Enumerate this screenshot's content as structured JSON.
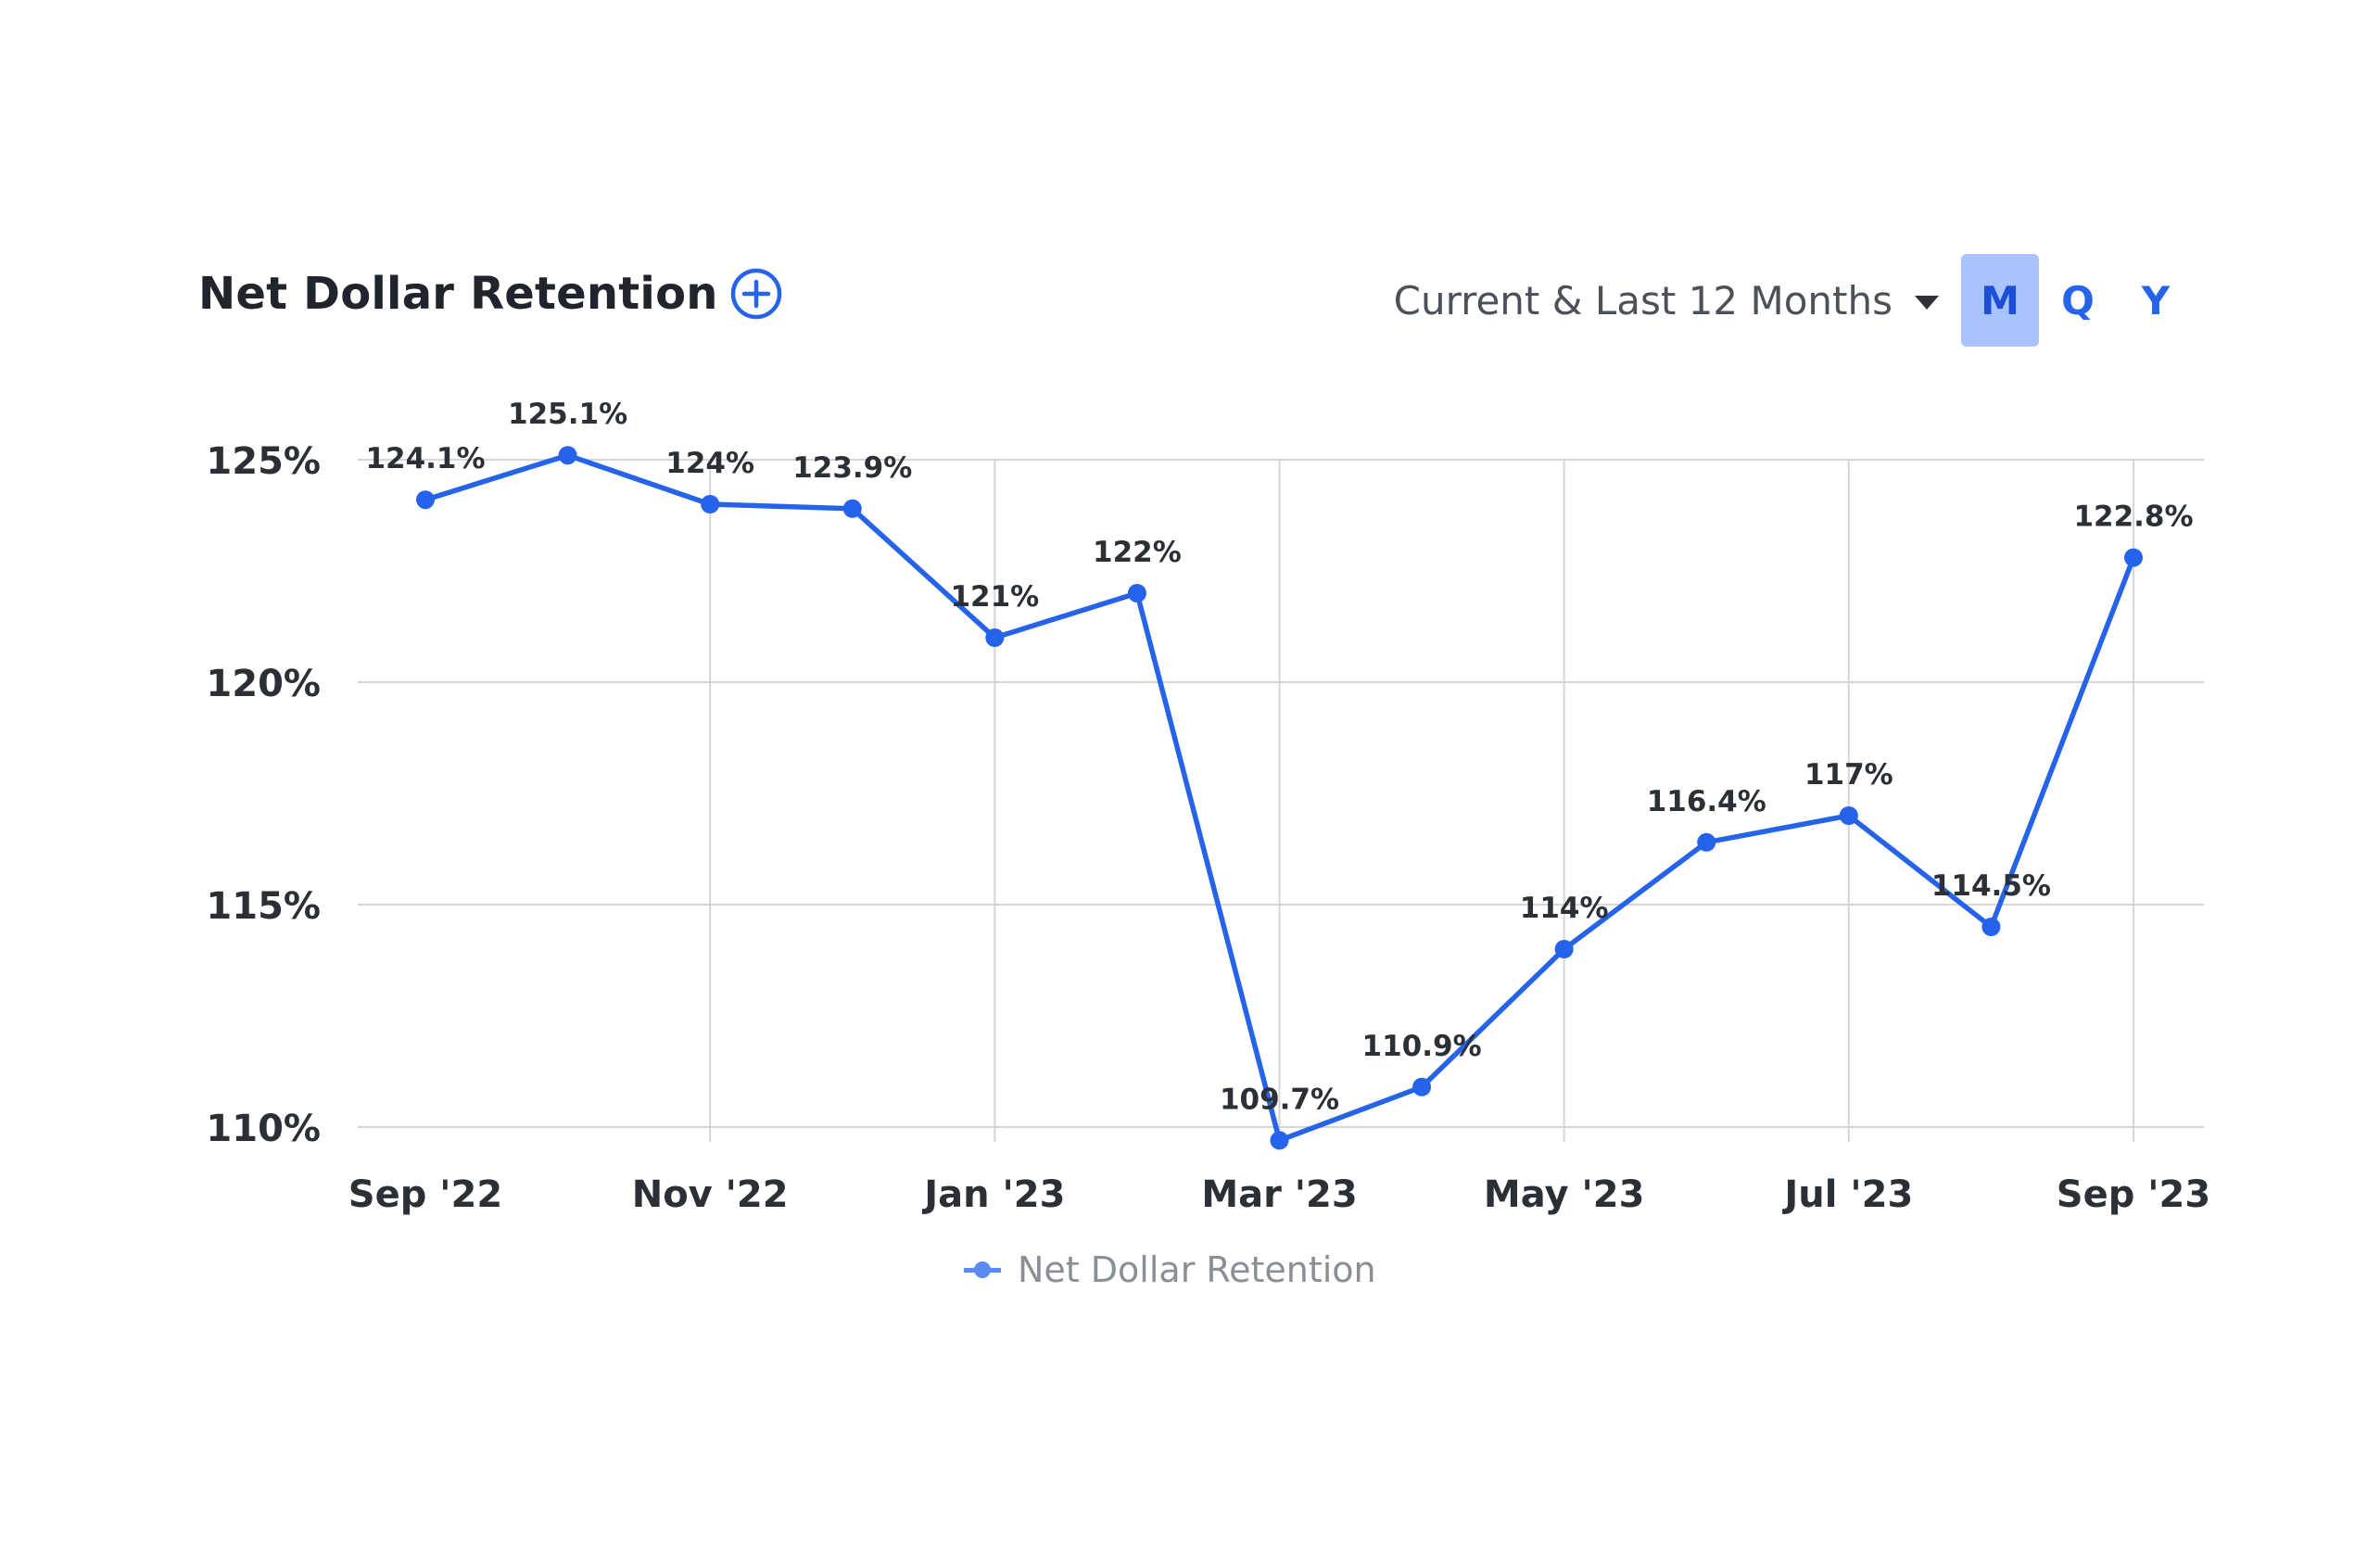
{
  "header": {
    "title": "Net Dollar Retention",
    "add_icon": "plus-circle-icon",
    "period_label": "Current & Last 12 Months",
    "period_icon": "caret-down-icon",
    "granularity": [
      {
        "label": "M",
        "active": true
      },
      {
        "label": "Q",
        "active": false
      },
      {
        "label": "Y",
        "active": false
      }
    ]
  },
  "colors": {
    "line": "#2563eb",
    "grid": "#d4d6da",
    "axis_text": "#2b2f36",
    "label_text": "#2b2f36",
    "legend_text": "#8a8e96",
    "active_button_bg": "#a9c3ff"
  },
  "chart_data": {
    "type": "line",
    "title": "Net Dollar Retention",
    "x": [
      "Sep '22",
      "Oct '22",
      "Nov '22",
      "Dec '22",
      "Jan '23",
      "Feb '23",
      "Mar '23",
      "Apr '23",
      "May '23",
      "Jun '23",
      "Jul '23",
      "Aug '23",
      "Sep '23"
    ],
    "x_tick_labels": [
      "Sep '22",
      "Nov '22",
      "Jan '23",
      "Mar '23",
      "May '23",
      "Jul '23",
      "Sep '23"
    ],
    "y_tick_labels": [
      "125%",
      "120%",
      "115%",
      "110%"
    ],
    "y_ticks": [
      125,
      120,
      115,
      110
    ],
    "ylim": [
      109.6,
      125.0
    ],
    "grid": true,
    "legend_position": "bottom-center",
    "series": [
      {
        "name": "Net Dollar Retention",
        "values": [
          124.1,
          125.1,
          124.0,
          123.9,
          121.0,
          122.0,
          109.7,
          110.9,
          114.0,
          116.4,
          117.0,
          114.5,
          122.8
        ],
        "labels": [
          "124.1%",
          "125.1%",
          "124%",
          "123.9%",
          "121%",
          "122%",
          "109.7%",
          "110.9%",
          "114%",
          "116.4%",
          "117%",
          "114.5%",
          "122.8%"
        ]
      }
    ]
  }
}
